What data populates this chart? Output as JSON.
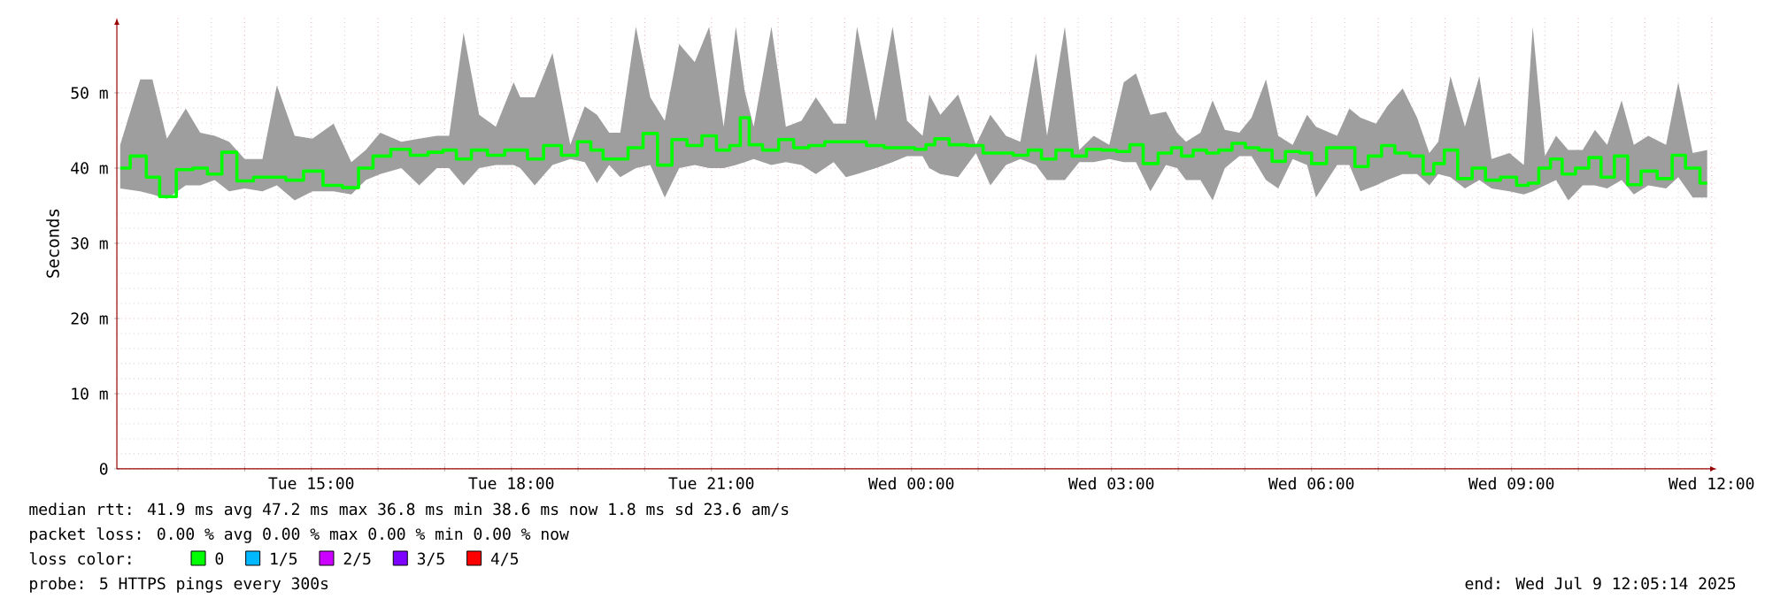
{
  "chart_data": {
    "type": "step",
    "ylabel": "Seconds",
    "legend_title": "loss color:",
    "legend": "bottom",
    "grid": true,
    "xlim": [
      "2025-07-08T12:05",
      "2025-07-09T12:05"
    ],
    "xticks": [
      {
        "value": "2025-07-08T13:00",
        "label": null
      },
      {
        "value": "2025-07-08T14:00",
        "label": null
      },
      {
        "value": "2025-07-08T15:00",
        "label": "Tue 15:00"
      },
      {
        "value": "2025-07-08T16:00",
        "label": null
      },
      {
        "value": "2025-07-08T17:00",
        "label": null
      },
      {
        "value": "2025-07-08T18:00",
        "label": "Tue 18:00"
      },
      {
        "value": "2025-07-08T19:00",
        "label": null
      },
      {
        "value": "2025-07-08T20:00",
        "label": null
      },
      {
        "value": "2025-07-08T21:00",
        "label": "Tue 21:00"
      },
      {
        "value": "2025-07-08T22:00",
        "label": null
      },
      {
        "value": "2025-07-08T23:00",
        "label": null
      },
      {
        "value": "2025-07-09T00:00",
        "label": "Wed 00:00"
      },
      {
        "value": "2025-07-09T01:00",
        "label": null
      },
      {
        "value": "2025-07-09T02:00",
        "label": null
      },
      {
        "value": "2025-07-09T03:00",
        "label": "Wed 03:00"
      },
      {
        "value": "2025-07-09T04:00",
        "label": null
      },
      {
        "value": "2025-07-09T05:00",
        "label": null
      },
      {
        "value": "2025-07-09T06:00",
        "label": "Wed 06:00"
      },
      {
        "value": "2025-07-09T07:00",
        "label": null
      },
      {
        "value": "2025-07-09T08:00",
        "label": null
      },
      {
        "value": "2025-07-09T09:00",
        "label": "Wed 09:00"
      },
      {
        "value": "2025-07-09T10:00",
        "label": null
      },
      {
        "value": "2025-07-09T11:00",
        "label": null
      },
      {
        "value": "2025-07-09T12:00",
        "label": "Wed 12:00"
      }
    ],
    "ylim": [
      0,
      60
    ],
    "yticks": [
      0,
      {
        "value": 10,
        "label": "10 m"
      },
      {
        "value": 20,
        "label": "20 m"
      },
      {
        "value": 30,
        "label": "30 m"
      },
      {
        "value": 40,
        "label": "40 m"
      },
      {
        "value": 50,
        "label": "50 m"
      }
    ],
    "x": [
      "2025-07-08T12:08",
      "2025-07-08T12:26",
      "2025-07-08T12:37",
      "2025-07-08T12:50",
      "2025-07-08T13:07",
      "2025-07-08T13:20",
      "2025-07-08T13:33",
      "2025-07-08T13:46",
      "2025-07-08T14:00",
      "2025-07-08T14:16",
      "2025-07-08T14:29",
      "2025-07-08T14:45",
      "2025-07-08T15:01",
      "2025-07-08T15:20",
      "2025-07-08T15:36",
      "2025-07-08T15:49",
      "2025-07-08T16:02",
      "2025-07-08T16:21",
      "2025-07-08T16:37",
      "2025-07-08T16:53",
      "2025-07-08T17:04",
      "2025-07-08T17:17",
      "2025-07-08T17:31",
      "2025-07-08T17:46",
      "2025-07-08T18:02",
      "2025-07-08T18:08",
      "2025-07-08T18:21",
      "2025-07-08T18:37",
      "2025-07-08T18:53",
      "2025-07-08T19:06",
      "2025-07-08T19:17",
      "2025-07-08T19:28",
      "2025-07-08T19:38",
      "2025-07-08T19:52",
      "2025-07-08T20:05",
      "2025-07-08T20:18",
      "2025-07-08T20:31",
      "2025-07-08T20:45",
      "2025-07-08T20:58",
      "2025-07-08T21:11",
      "2025-07-08T21:22",
      "2025-07-08T21:30",
      "2025-07-08T21:38",
      "2025-07-08T21:54",
      "2025-07-08T22:07",
      "2025-07-08T22:21",
      "2025-07-08T22:34",
      "2025-07-08T22:50",
      "2025-07-08T23:01",
      "2025-07-08T23:11",
      "2025-07-08T23:28",
      "2025-07-08T23:43",
      "2025-07-08T23:56",
      "2025-07-09T00:10",
      "2025-07-09T00:16",
      "2025-07-09T00:26",
      "2025-07-09T00:42",
      "2025-07-09T00:58",
      "2025-07-09T01:11",
      "2025-07-09T01:25",
      "2025-07-09T01:38",
      "2025-07-09T01:52",
      "2025-07-09T02:02",
      "2025-07-09T02:18",
      "2025-07-09T02:31",
      "2025-07-09T02:44",
      "2025-07-09T02:58",
      "2025-07-09T03:11",
      "2025-07-09T03:22",
      "2025-07-09T03:35",
      "2025-07-09T03:49",
      "2025-07-09T03:59",
      "2025-07-09T04:07",
      "2025-07-09T04:20",
      "2025-07-09T04:31",
      "2025-07-09T04:42",
      "2025-07-09T04:55",
      "2025-07-09T05:06",
      "2025-07-09T05:19",
      "2025-07-09T05:30",
      "2025-07-09T05:43",
      "2025-07-09T05:56",
      "2025-07-09T06:04",
      "2025-07-09T06:23",
      "2025-07-09T06:34",
      "2025-07-09T06:44",
      "2025-07-09T06:58",
      "2025-07-09T07:08",
      "2025-07-09T07:22",
      "2025-07-09T07:35",
      "2025-07-09T07:46",
      "2025-07-09T07:54",
      "2025-07-09T08:05",
      "2025-07-09T08:18",
      "2025-07-09T08:31",
      "2025-07-09T08:42",
      "2025-07-09T08:58",
      "2025-07-09T09:11",
      "2025-07-09T09:19",
      "2025-07-09T09:30",
      "2025-07-09T09:40",
      "2025-07-09T09:51",
      "2025-07-09T10:04",
      "2025-07-09T10:15",
      "2025-07-09T10:26",
      "2025-07-09T10:39",
      "2025-07-09T10:50",
      "2025-07-09T11:03",
      "2025-07-09T11:19",
      "2025-07-09T11:30",
      "2025-07-09T11:43",
      "2025-07-09T11:56"
    ],
    "series": [
      {
        "name": "0",
        "color": "#00ff00",
        "values": [
          40.0,
          41.6,
          38.8,
          36.2,
          39.8,
          40.0,
          39.2,
          42.1,
          38.3,
          38.8,
          38.8,
          38.4,
          39.6,
          37.7,
          37.4,
          40.0,
          41.6,
          42.5,
          41.7,
          42.1,
          42.4,
          41.2,
          42.4,
          41.7,
          42.4,
          42.4,
          41.2,
          43.0,
          41.7,
          43.5,
          42.4,
          41.2,
          41.2,
          42.7,
          44.6,
          40.4,
          43.8,
          43.0,
          44.3,
          42.4,
          43.0,
          46.7,
          43.1,
          42.4,
          43.8,
          42.7,
          43.0,
          43.5,
          43.5,
          43.5,
          43.0,
          42.7,
          42.7,
          42.5,
          43.1,
          43.9,
          43.1,
          43.0,
          42.0,
          42.0,
          41.7,
          42.4,
          41.2,
          42.4,
          41.6,
          42.5,
          42.4,
          42.2,
          43.1,
          40.6,
          42.0,
          42.7,
          41.6,
          42.4,
          42.0,
          42.4,
          43.3,
          42.7,
          42.4,
          40.9,
          42.2,
          42.0,
          40.6,
          42.7,
          42.7,
          40.2,
          41.6,
          43.0,
          42.0,
          41.6,
          39.2,
          40.6,
          42.4,
          38.6,
          40.0,
          38.4,
          38.8,
          37.7,
          38.0,
          40.0,
          41.2,
          39.2,
          40.0,
          41.4,
          38.8,
          41.6,
          37.8,
          39.6,
          38.6,
          41.7,
          40.0,
          38.0
        ],
        "lower": [
          37.3,
          36.9,
          36.5,
          35.9,
          37.7,
          37.7,
          38.4,
          36.9,
          37.3,
          36.9,
          37.7,
          35.7,
          36.9,
          36.9,
          36.5,
          38.4,
          39.2,
          40.0,
          37.7,
          40.0,
          40.0,
          37.7,
          40.0,
          40.4,
          40.4,
          40.0,
          37.7,
          40.4,
          41.2,
          40.8,
          38.0,
          40.4,
          38.8,
          40.0,
          40.4,
          36.1,
          40.0,
          40.4,
          40.0,
          40.0,
          40.4,
          40.8,
          41.2,
          40.4,
          40.8,
          40.4,
          39.2,
          40.8,
          38.8,
          39.2,
          40.0,
          40.8,
          41.6,
          41.6,
          40.0,
          39.2,
          38.8,
          42.0,
          37.7,
          40.4,
          41.2,
          40.4,
          38.4,
          38.4,
          40.8,
          40.8,
          41.2,
          40.8,
          40.8,
          36.9,
          40.4,
          40.0,
          38.4,
          38.4,
          35.7,
          40.0,
          41.6,
          41.6,
          38.4,
          37.3,
          41.2,
          40.4,
          36.1,
          40.4,
          40.4,
          36.9,
          37.7,
          38.4,
          39.2,
          39.2,
          37.7,
          39.2,
          38.8,
          37.3,
          38.4,
          37.3,
          36.9,
          36.5,
          36.9,
          37.7,
          38.4,
          35.7,
          37.7,
          37.7,
          37.3,
          38.4,
          36.5,
          37.7,
          37.3,
          38.8,
          36.1,
          36.1
        ],
        "upper": [
          43.1,
          51.8,
          51.8,
          43.9,
          47.9,
          44.7,
          44.3,
          43.5,
          41.2,
          41.2,
          51.0,
          44.3,
          43.9,
          45.9,
          40.8,
          42.4,
          44.7,
          43.5,
          43.9,
          44.3,
          44.3,
          58.0,
          47.1,
          45.5,
          51.4,
          49.4,
          49.4,
          55.3,
          43.1,
          48.2,
          47.1,
          44.7,
          44.7,
          58.8,
          49.4,
          46.3,
          56.5,
          54.1,
          58.8,
          45.5,
          58.8,
          50.2,
          45.5,
          58.8,
          45.5,
          46.3,
          49.4,
          45.9,
          45.9,
          58.8,
          46.3,
          58.8,
          46.3,
          44.3,
          49.8,
          47.1,
          49.8,
          43.1,
          47.1,
          44.3,
          43.5,
          55.3,
          44.3,
          58.8,
          42.4,
          44.3,
          43.1,
          51.4,
          52.6,
          47.1,
          47.5,
          44.7,
          43.5,
          44.7,
          49.0,
          45.1,
          44.7,
          46.7,
          51.8,
          44.3,
          43.1,
          47.1,
          45.5,
          44.3,
          47.9,
          46.7,
          45.9,
          48.2,
          50.6,
          46.7,
          42.0,
          43.5,
          52.2,
          45.5,
          52.2,
          41.2,
          42.0,
          40.4,
          58.8,
          41.6,
          44.3,
          42.4,
          42.4,
          45.1,
          43.1,
          49.0,
          43.1,
          44.3,
          43.1,
          51.4,
          42.0,
          42.4
        ]
      },
      {
        "name": "1/5",
        "color": "#00b8ff",
        "values": [
          null,
          null,
          null,
          null,
          null,
          null,
          null,
          null,
          null,
          null,
          null,
          null,
          null,
          null,
          null,
          null,
          null,
          null,
          null,
          null,
          null,
          null,
          null,
          null,
          null,
          null,
          null,
          null,
          null,
          null,
          null,
          null,
          null,
          null,
          null,
          null,
          null,
          null,
          null,
          null,
          null,
          null,
          null,
          null,
          null,
          null,
          null,
          null,
          null,
          null,
          null,
          null,
          null,
          null,
          null,
          null,
          null,
          null,
          null,
          null,
          null,
          null,
          null,
          null,
          null,
          null,
          null,
          null,
          null,
          null,
          null,
          null,
          null,
          null,
          null,
          null,
          null,
          null,
          null,
          null,
          null,
          null,
          null,
          null,
          null,
          null,
          null,
          null,
          null,
          null,
          null,
          null,
          null,
          null,
          null,
          null,
          null,
          null,
          null,
          null,
          null,
          null,
          null,
          null,
          null,
          null,
          null,
          null,
          null,
          null,
          null,
          null
        ]
      },
      {
        "name": "2/5",
        "color": "#cc00ff",
        "values": [
          null,
          null,
          null,
          null,
          null,
          null,
          null,
          null,
          null,
          null,
          null,
          null,
          null,
          null,
          null,
          null,
          null,
          null,
          null,
          null,
          null,
          null,
          null,
          null,
          null,
          null,
          null,
          null,
          null,
          null,
          null,
          null,
          null,
          null,
          null,
          null,
          null,
          null,
          null,
          null,
          null,
          null,
          null,
          null,
          null,
          null,
          null,
          null,
          null,
          null,
          null,
          null,
          null,
          null,
          null,
          null,
          null,
          null,
          null,
          null,
          null,
          null,
          null,
          null,
          null,
          null,
          null,
          null,
          null,
          null,
          null,
          null,
          null,
          null,
          null,
          null,
          null,
          null,
          null,
          null,
          null,
          null,
          null,
          null,
          null,
          null,
          null,
          null,
          null,
          null,
          null,
          null,
          null,
          null,
          null,
          null,
          null,
          null,
          null,
          null,
          null,
          null,
          null,
          null,
          null,
          null,
          null,
          null,
          null,
          null,
          null,
          null
        ]
      },
      {
        "name": "3/5",
        "color": "#7e00ff",
        "values": [
          null,
          null,
          null,
          null,
          null,
          null,
          null,
          null,
          null,
          null,
          null,
          null,
          null,
          null,
          null,
          null,
          null,
          null,
          null,
          null,
          null,
          null,
          null,
          null,
          null,
          null,
          null,
          null,
          null,
          null,
          null,
          null,
          null,
          null,
          null,
          null,
          null,
          null,
          null,
          null,
          null,
          null,
          null,
          null,
          null,
          null,
          null,
          null,
          null,
          null,
          null,
          null,
          null,
          null,
          null,
          null,
          null,
          null,
          null,
          null,
          null,
          null,
          null,
          null,
          null,
          null,
          null,
          null,
          null,
          null,
          null,
          null,
          null,
          null,
          null,
          null,
          null,
          null,
          null,
          null,
          null,
          null,
          null,
          null,
          null,
          null,
          null,
          null,
          null,
          null,
          null,
          null,
          null,
          null,
          null,
          null,
          null,
          null,
          null,
          null,
          null,
          null,
          null,
          null,
          null,
          null,
          null,
          null,
          null,
          null,
          null,
          null
        ]
      },
      {
        "name": "4/5",
        "color": "#ff0000",
        "values": [
          null,
          null,
          null,
          null,
          null,
          null,
          null,
          null,
          null,
          null,
          null,
          null,
          null,
          null,
          null,
          null,
          null,
          null,
          null,
          null,
          null,
          null,
          null,
          null,
          null,
          null,
          null,
          null,
          null,
          null,
          null,
          null,
          null,
          null,
          null,
          null,
          null,
          null,
          null,
          null,
          null,
          null,
          null,
          null,
          null,
          null,
          null,
          null,
          null,
          null,
          null,
          null,
          null,
          null,
          null,
          null,
          null,
          null,
          null,
          null,
          null,
          null,
          null,
          null,
          null,
          null,
          null,
          null,
          null,
          null,
          null,
          null,
          null,
          null,
          null,
          null,
          null,
          null,
          null,
          null,
          null,
          null,
          null,
          null,
          null,
          null,
          null,
          null,
          null,
          null,
          null,
          null,
          null,
          null,
          null,
          null,
          null,
          null,
          null,
          null,
          null,
          null,
          null,
          null,
          null,
          null,
          null,
          null,
          null,
          null,
          null,
          null
        ]
      }
    ],
    "annotations": [
      "median rtt: 41.9 ms avg 47.2 ms max 36.8 ms min 38.6 ms now 1.8 ms sd 23.6 am/s",
      "packet loss: 0.00 % avg 0.00 % max 0.00 % min 0.00 % now",
      "probe: 5 HTTPS pings every 300s",
      "end: Wed Jul 9 12:05:14 2025"
    ]
  }
}
